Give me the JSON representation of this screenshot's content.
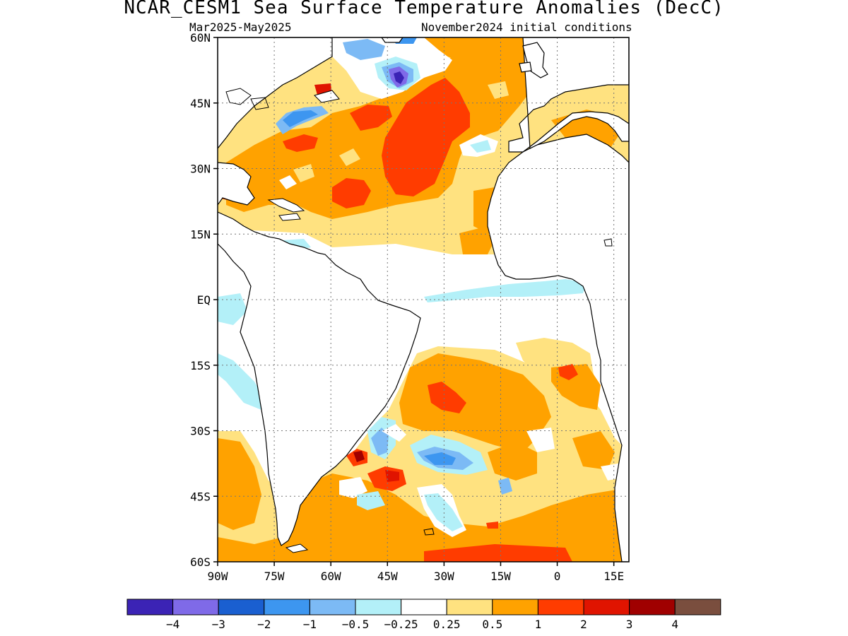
{
  "header": {
    "title": "NCAR_CESM1 Sea Surface Temperature Anomalies (DecC)",
    "period": "Mar2025-May2025",
    "init": "November2024 initial conditions"
  },
  "map": {
    "lon_range": [
      -90,
      19
    ],
    "lat_range": [
      -60,
      60
    ],
    "lat_ticks": [
      {
        "value": 60,
        "label": "60N"
      },
      {
        "value": 45,
        "label": "45N"
      },
      {
        "value": 30,
        "label": "30N"
      },
      {
        "value": 15,
        "label": "15N"
      },
      {
        "value": 0,
        "label": "EQ"
      },
      {
        "value": -15,
        "label": "15S"
      },
      {
        "value": -30,
        "label": "30S"
      },
      {
        "value": -45,
        "label": "45S"
      },
      {
        "value": -60,
        "label": "60S"
      }
    ],
    "lon_ticks": [
      {
        "value": -90,
        "label": "90W"
      },
      {
        "value": -75,
        "label": "75W"
      },
      {
        "value": -60,
        "label": "60W"
      },
      {
        "value": -45,
        "label": "45W"
      },
      {
        "value": -30,
        "label": "30W"
      },
      {
        "value": -15,
        "label": "15W"
      },
      {
        "value": 0,
        "label": "0"
      },
      {
        "value": 15,
        "label": "15E"
      }
    ],
    "grid": "dotted"
  },
  "colorbar": {
    "colors": [
      "#3b23b5",
      "#7f6ae8",
      "#1a5fd0",
      "#3d96f0",
      "#7cbaf5",
      "#b3f0f8",
      "#ffffff",
      "#ffe280",
      "#ffa200",
      "#ff3c00",
      "#e01400",
      "#a00000",
      "#7a4e3e"
    ],
    "labels": [
      "−4",
      "−3",
      "−2",
      "−1",
      "−0.5",
      "−0.25",
      "0.25",
      "0.5",
      "1",
      "2",
      "3",
      "4"
    ]
  }
}
